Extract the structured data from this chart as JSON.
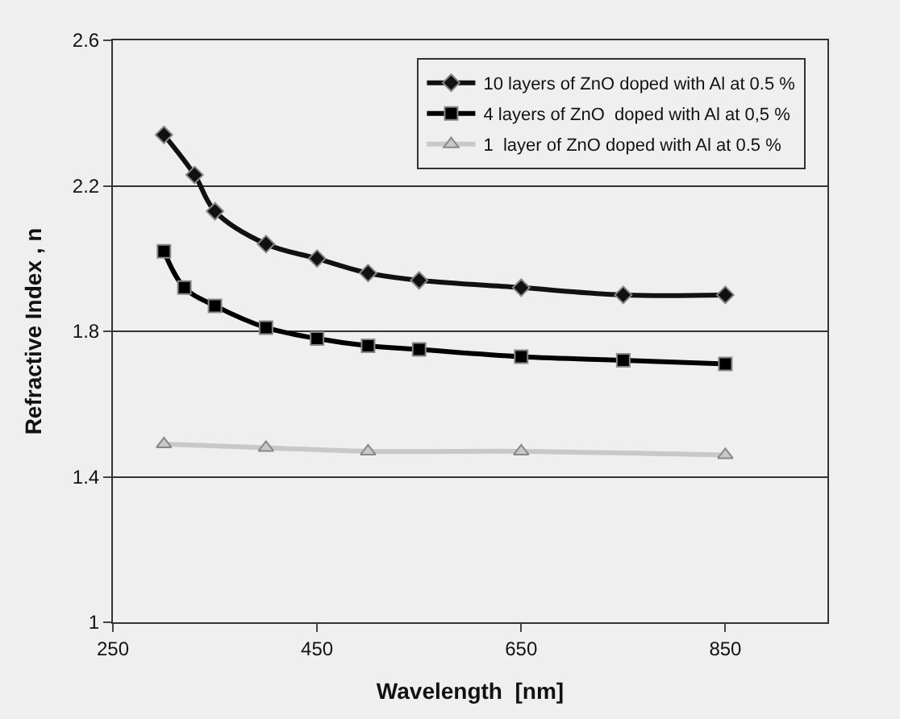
{
  "chart_data": {
    "type": "line",
    "xlabel": "Wavelength  [nm]",
    "ylabel": "Refractive Index , n",
    "xlim": [
      250,
      950
    ],
    "xticks": [
      250,
      450,
      650,
      850
    ],
    "ylim": [
      1,
      2.6
    ],
    "yticks": [
      1,
      1.4,
      1.8,
      2.2,
      2.6
    ],
    "grid": "y",
    "legend": "top right",
    "series": [
      {
        "name": "10 layers of ZnO doped with Al at 0.5 %",
        "color": "#111111",
        "marker": "diamond",
        "x": [
          300,
          330,
          350,
          400,
          450,
          500,
          550,
          650,
          750,
          850
        ],
        "values": [
          2.34,
          2.23,
          2.13,
          2.04,
          2.0,
          1.96,
          1.94,
          1.92,
          1.9,
          1.9
        ]
      },
      {
        "name": "4 layers of ZnO  doped with Al at 0,5 %",
        "color": "#000000",
        "marker": "square",
        "x": [
          300,
          320,
          350,
          400,
          450,
          500,
          550,
          650,
          750,
          850
        ],
        "values": [
          2.02,
          1.92,
          1.87,
          1.81,
          1.78,
          1.76,
          1.75,
          1.73,
          1.72,
          1.71
        ]
      },
      {
        "name": "1  layer of ZnO doped with Al at 0.5 %",
        "color": "#c8c8c8",
        "marker": "triangle",
        "x": [
          300,
          400,
          500,
          650,
          850
        ],
        "values": [
          1.49,
          1.48,
          1.47,
          1.47,
          1.46
        ]
      }
    ]
  }
}
